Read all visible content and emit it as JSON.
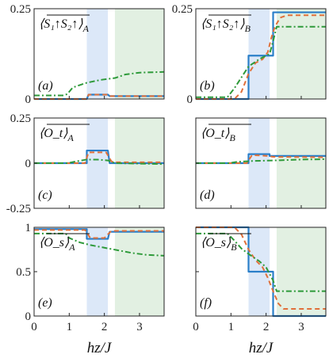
{
  "chart_data": [
    {
      "type": "line",
      "panel": "(a)",
      "label": {
        "main": "⟨S₁↑S₂↑⟩",
        "sub": "A"
      },
      "ylim": [
        0,
        0.25
      ],
      "xlim": [
        0,
        3.7
      ],
      "yticks": [
        {
          "v": 0,
          "label": "0"
        },
        {
          "v": 0.25,
          "label": "0.25"
        }
      ],
      "xticks": [],
      "shade": [
        {
          "x0": 1.5,
          "x1": 2.1,
          "color": "#dce8f8"
        },
        {
          "x0": 2.3,
          "x1": 3.7,
          "color": "#e2f0e2"
        }
      ],
      "series": [
        {
          "color": "#2a7fc9",
          "dash": "",
          "width": 2.2,
          "x": [
            0,
            1.5,
            1.55,
            2.1,
            2.15,
            3.7
          ],
          "y": [
            0.0,
            0.0,
            0.012,
            0.012,
            0.008,
            0.008
          ]
        },
        {
          "color": "#e0703a",
          "dash": "6,4",
          "width": 2,
          "x": [
            0,
            1.5,
            1.55,
            2.1,
            2.15,
            3.7
          ],
          "y": [
            0.0,
            0.0,
            0.012,
            0.012,
            0.008,
            0.008
          ]
        },
        {
          "color": "#2e9a3a",
          "dash": "7,3,2,3",
          "width": 2,
          "x": [
            0,
            0.85,
            0.95,
            1.1,
            1.5,
            1.9,
            2.3,
            2.6,
            3.0,
            3.7
          ],
          "y": [
            0.01,
            0.01,
            0.014,
            0.032,
            0.045,
            0.053,
            0.058,
            0.068,
            0.073,
            0.075
          ]
        }
      ]
    },
    {
      "type": "line",
      "panel": "(b)",
      "label": {
        "main": "⟨S₁↑S₂↑⟩",
        "sub": "B"
      },
      "ylim": [
        0,
        0.25
      ],
      "xlim": [
        0,
        3.7
      ],
      "yticks": [
        {
          "v": 0,
          "label": "0"
        },
        {
          "v": 0.25,
          "label": "0.25"
        }
      ],
      "xticks": [],
      "shade": [
        {
          "x0": 1.5,
          "x1": 2.1,
          "color": "#dce8f8"
        },
        {
          "x0": 2.3,
          "x1": 3.7,
          "color": "#e2f0e2"
        }
      ],
      "series": [
        {
          "color": "#2a7fc9",
          "dash": "",
          "width": 2.2,
          "x": [
            0,
            1.5,
            1.5,
            2.2,
            2.2,
            3.7
          ],
          "y": [
            0.0,
            0.0,
            0.12,
            0.12,
            0.24,
            0.24
          ]
        },
        {
          "color": "#e0703a",
          "dash": "6,4",
          "width": 2,
          "x": [
            0,
            1.1,
            1.3,
            1.5,
            1.7,
            1.9,
            2.05,
            2.15,
            2.25,
            2.4,
            2.6,
            3.7
          ],
          "y": [
            0.0,
            0.0,
            0.02,
            0.07,
            0.1,
            0.11,
            0.13,
            0.17,
            0.2,
            0.225,
            0.232,
            0.232
          ]
        },
        {
          "color": "#2e9a3a",
          "dash": "7,3,2,3",
          "width": 2,
          "x": [
            0,
            0.9,
            1.1,
            1.3,
            1.5,
            1.8,
            2.1,
            2.2,
            2.3,
            2.5,
            3.7
          ],
          "y": [
            0.005,
            0.005,
            0.03,
            0.06,
            0.09,
            0.11,
            0.125,
            0.16,
            0.2,
            0.2,
            0.2
          ]
        }
      ]
    },
    {
      "type": "line",
      "panel": "(c)",
      "label": {
        "main": "⟨O_t⟩",
        "sub": "A"
      },
      "ylim": [
        -0.25,
        0.25
      ],
      "xlim": [
        0,
        3.7
      ],
      "yticks": [
        {
          "v": 0.25,
          "label": "0.25"
        },
        {
          "v": 0,
          "label": "0"
        },
        {
          "v": -0.25,
          "label": "-0.25"
        }
      ],
      "xticks": [],
      "shade": [
        {
          "x0": 1.5,
          "x1": 2.1,
          "color": "#dce8f8"
        },
        {
          "x0": 2.3,
          "x1": 3.7,
          "color": "#e2f0e2"
        }
      ],
      "series": [
        {
          "color": "#2a7fc9",
          "dash": "",
          "width": 2.2,
          "x": [
            0,
            1.5,
            1.5,
            2.1,
            2.15,
            3.7
          ],
          "y": [
            0,
            0,
            0.07,
            0.07,
            0,
            0
          ]
        },
        {
          "color": "#e0703a",
          "dash": "6,4",
          "width": 2,
          "x": [
            0,
            1.45,
            1.55,
            2.05,
            2.2,
            2.3,
            3.7
          ],
          "y": [
            0,
            0,
            0.06,
            0.06,
            0.01,
            0.005,
            0.005
          ]
        },
        {
          "color": "#2e9a3a",
          "dash": "7,3,2,3",
          "width": 2,
          "x": [
            0,
            0.95,
            1.2,
            1.5,
            1.8,
            2.1,
            2.3,
            3.7
          ],
          "y": [
            0,
            0,
            0.01,
            0.02,
            0.02,
            0.015,
            0.0,
            -0.005
          ]
        }
      ]
    },
    {
      "type": "line",
      "panel": "(d)",
      "label": {
        "main": "⟨O_t⟩",
        "sub": "B"
      },
      "ylim": [
        -0.25,
        0.25
      ],
      "xlim": [
        0,
        3.7
      ],
      "yticks": [],
      "xticks": [],
      "shade": [
        {
          "x0": 1.5,
          "x1": 2.1,
          "color": "#dce8f8"
        },
        {
          "x0": 2.3,
          "x1": 3.7,
          "color": "#e2f0e2"
        }
      ],
      "series": [
        {
          "color": "#2a7fc9",
          "dash": "",
          "width": 2.2,
          "x": [
            0,
            1.5,
            1.5,
            2.1,
            2.1,
            3.7
          ],
          "y": [
            0,
            0,
            0.05,
            0.05,
            0.04,
            0.04
          ]
        },
        {
          "color": "#e0703a",
          "dash": "6,4",
          "width": 2,
          "x": [
            0,
            1.45,
            1.6,
            2.05,
            2.2,
            3.7
          ],
          "y": [
            0,
            0,
            0.045,
            0.04,
            0.035,
            0.033
          ]
        },
        {
          "color": "#2e9a3a",
          "dash": "7,3,2,3",
          "width": 2,
          "x": [
            0,
            0.95,
            1.2,
            1.6,
            2.0,
            2.4,
            3.0,
            3.7
          ],
          "y": [
            0,
            0,
            0.008,
            0.012,
            0.014,
            0.016,
            0.02,
            0.022
          ]
        }
      ]
    },
    {
      "type": "line",
      "panel": "(e)",
      "label": {
        "main": "⟨O_s⟩",
        "sub": "A"
      },
      "xlabel": "h_z/J",
      "ylim": [
        0,
        1
      ],
      "xlim": [
        0,
        3.7
      ],
      "yticks": [
        {
          "v": 1,
          "label": "1"
        },
        {
          "v": 0.5,
          "label": "0.5"
        },
        {
          "v": 0,
          "label": "0"
        }
      ],
      "xticks": [
        {
          "v": 0,
          "label": "0"
        },
        {
          "v": 1,
          "label": "1"
        },
        {
          "v": 2,
          "label": "2"
        },
        {
          "v": 3,
          "label": "3"
        }
      ],
      "shade": [
        {
          "x0": 1.5,
          "x1": 2.1,
          "color": "#dce8f8"
        },
        {
          "x0": 2.3,
          "x1": 3.7,
          "color": "#e2f0e2"
        }
      ],
      "series": [
        {
          "color": "#2a7fc9",
          "dash": "",
          "width": 2.2,
          "x": [
            0,
            1.5,
            1.5,
            2.1,
            2.15,
            3.7
          ],
          "y": [
            0.98,
            0.98,
            0.87,
            0.87,
            0.95,
            0.95
          ]
        },
        {
          "color": "#e0703a",
          "dash": "6,4",
          "width": 2,
          "x": [
            0,
            1.45,
            1.6,
            2.0,
            2.2,
            3.7
          ],
          "y": [
            0.97,
            0.97,
            0.88,
            0.88,
            0.96,
            0.96
          ]
        },
        {
          "color": "#2e9a3a",
          "dash": "7,3,2,3",
          "width": 2,
          "x": [
            0,
            0.9,
            1.0,
            1.3,
            1.6,
            2.0,
            2.4,
            2.8,
            3.2,
            3.7
          ],
          "y": [
            0.93,
            0.93,
            0.88,
            0.83,
            0.8,
            0.77,
            0.74,
            0.71,
            0.69,
            0.68
          ]
        }
      ]
    },
    {
      "type": "line",
      "panel": "(f)",
      "label": {
        "main": "⟨O_s⟩",
        "sub": "B"
      },
      "xlabel": "h_z/J",
      "ylim": [
        0,
        1
      ],
      "xlim": [
        0,
        3.7
      ],
      "yticks": [],
      "xticks": [
        {
          "v": 0,
          "label": "0"
        },
        {
          "v": 1,
          "label": "1"
        },
        {
          "v": 2,
          "label": "2"
        },
        {
          "v": 3,
          "label": "3"
        }
      ],
      "shade": [
        {
          "x0": 1.5,
          "x1": 2.1,
          "color": "#dce8f8"
        },
        {
          "x0": 2.3,
          "x1": 3.7,
          "color": "#e2f0e2"
        }
      ],
      "series": [
        {
          "color": "#2a7fc9",
          "dash": "",
          "width": 2.2,
          "x": [
            0,
            1.5,
            1.5,
            2.2,
            2.2,
            3.7
          ],
          "y": [
            1.0,
            1.0,
            0.5,
            0.5,
            0.0,
            0.0
          ]
        },
        {
          "color": "#e0703a",
          "dash": "6,4",
          "width": 2,
          "x": [
            0,
            1.1,
            1.3,
            1.5,
            1.7,
            1.9,
            2.05,
            2.2,
            2.35,
            2.5,
            3.7
          ],
          "y": [
            1.0,
            1.0,
            0.92,
            0.75,
            0.63,
            0.55,
            0.43,
            0.28,
            0.14,
            0.08,
            0.08
          ]
        },
        {
          "color": "#2e9a3a",
          "dash": "7,3,2,3",
          "width": 2,
          "x": [
            0,
            0.9,
            1.1,
            1.3,
            1.5,
            1.8,
            2.0,
            2.2,
            2.3,
            3.7
          ],
          "y": [
            0.93,
            0.93,
            0.85,
            0.76,
            0.7,
            0.62,
            0.55,
            0.4,
            0.28,
            0.28
          ]
        }
      ]
    }
  ]
}
